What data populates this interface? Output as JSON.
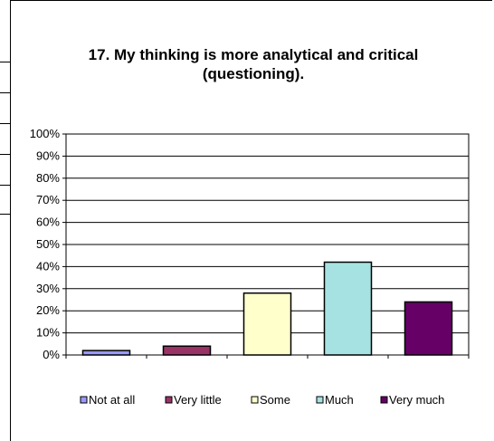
{
  "chart_data": {
    "type": "bar",
    "title": "17. My thinking is more analytical and critical (questioning).",
    "categories": [
      "Not at all",
      "Very little",
      "Some",
      "Much",
      "Very much"
    ],
    "values": [
      2,
      4,
      28,
      42,
      24
    ],
    "colors": [
      "#9999FF",
      "#993366",
      "#FFFFCC",
      "#A6E2E2",
      "#660066"
    ],
    "ylim": [
      0,
      100
    ],
    "yticks": [
      "0%",
      "10%",
      "20%",
      "30%",
      "40%",
      "50%",
      "60%",
      "70%",
      "80%",
      "90%",
      "100%"
    ],
    "grid": true,
    "legend": "bottom"
  }
}
